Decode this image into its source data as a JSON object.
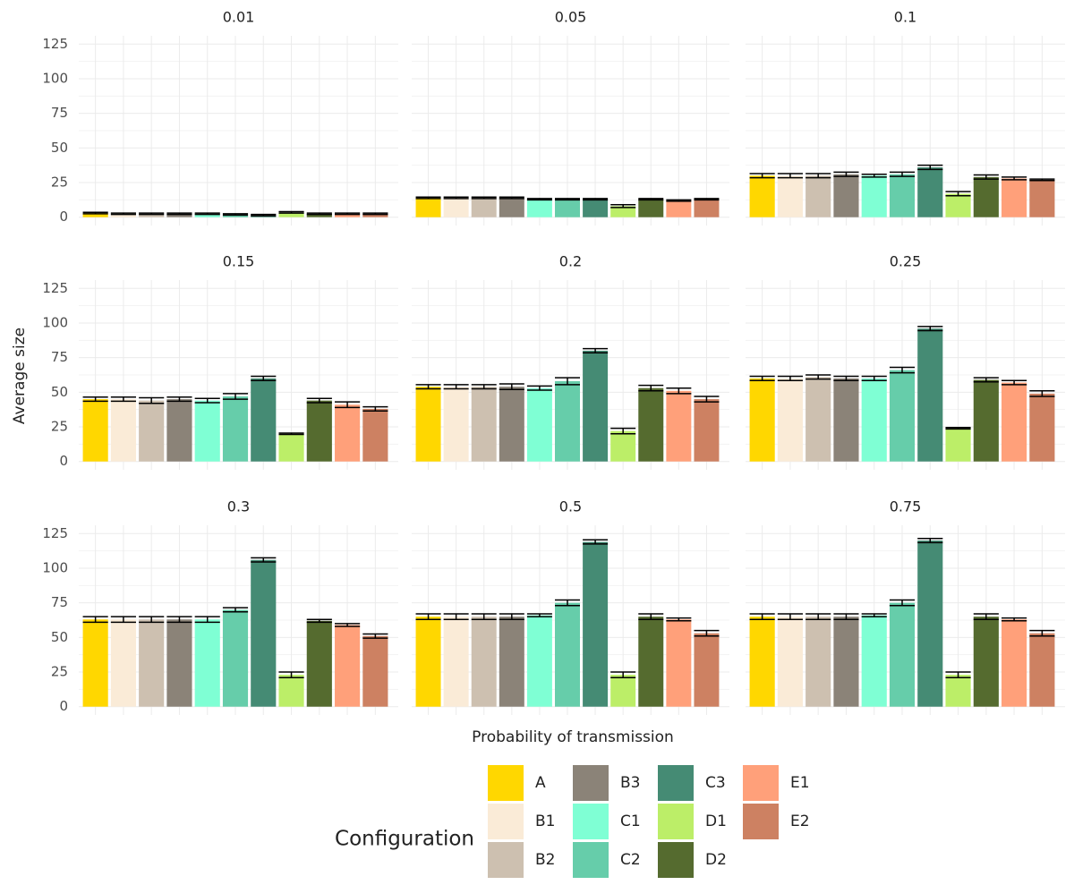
{
  "chart_data": {
    "type": "bar",
    "xlabel": "Probability of transmission",
    "ylabel": "Average size",
    "legend_title": "Configuration",
    "facets": [
      "0.01",
      "0.05",
      "0.1",
      "0.15",
      "0.2",
      "0.25",
      "0.3",
      "0.5",
      "0.75"
    ],
    "ylim": [
      -6,
      131
    ],
    "yticks": [
      0,
      25,
      50,
      75,
      100,
      125
    ],
    "grid": true,
    "series": [
      {
        "name": "A",
        "color": "#FFD700",
        "values": [
          3,
          14,
          30,
          45,
          54,
          60,
          63,
          65,
          65
        ],
        "errors": [
          0.5,
          0.5,
          1.5,
          1.5,
          1.5,
          1.5,
          2,
          2,
          2
        ]
      },
      {
        "name": "B1",
        "color": "#FAEBD7",
        "values": [
          2.5,
          14,
          30,
          45,
          54,
          60,
          63,
          65,
          65
        ],
        "errors": [
          0.5,
          0.5,
          1.5,
          1.5,
          1.5,
          1.5,
          2,
          2,
          2
        ]
      },
      {
        "name": "B2",
        "color": "#CDC0B0",
        "values": [
          2.5,
          14,
          30,
          44,
          54,
          61,
          63,
          65,
          65
        ],
        "errors": [
          0.5,
          0.5,
          1.5,
          2,
          1.5,
          1.5,
          2,
          2,
          2
        ]
      },
      {
        "name": "B3",
        "color": "#8B8378",
        "values": [
          2.5,
          14,
          31,
          45,
          54,
          60,
          63,
          65,
          65
        ],
        "errors": [
          0.5,
          0.5,
          1.5,
          1.5,
          2,
          1.5,
          2,
          2,
          2
        ]
      },
      {
        "name": "C1",
        "color": "#7FFFD4",
        "values": [
          2.5,
          13,
          30,
          44,
          53,
          60,
          63,
          66,
          66
        ],
        "errors": [
          0.5,
          0.5,
          1,
          1.5,
          1.5,
          1.5,
          2,
          1,
          1
        ]
      },
      {
        "name": "C2",
        "color": "#66CDAA",
        "values": [
          2,
          13,
          31,
          47,
          58,
          66,
          70,
          75,
          75
        ],
        "errors": [
          0.5,
          0.5,
          1.5,
          2,
          2.5,
          2,
          1.5,
          2,
          2
        ]
      },
      {
        "name": "C3",
        "color": "#458B74",
        "values": [
          1.5,
          13,
          36,
          60,
          80,
          96,
          106,
          119,
          120
        ],
        "errors": [
          0.5,
          0.5,
          1.5,
          1.5,
          1.5,
          1.5,
          1.5,
          1.5,
          1.5
        ]
      },
      {
        "name": "D1",
        "color": "#BCEE68",
        "values": [
          3.5,
          8,
          17,
          20,
          22,
          24,
          23,
          23,
          23
        ],
        "errors": [
          0.5,
          1,
          1.5,
          0.5,
          2,
          0.5,
          2,
          2,
          2
        ]
      },
      {
        "name": "D2",
        "color": "#556B2F",
        "values": [
          2.5,
          13,
          29,
          44,
          53,
          59,
          62,
          65,
          65
        ],
        "errors": [
          0.5,
          0.5,
          1.5,
          1.5,
          2,
          1.5,
          1,
          2,
          2
        ]
      },
      {
        "name": "E1",
        "color": "#FFA07A",
        "values": [
          2.5,
          12,
          28,
          41,
          51,
          57,
          59,
          63,
          63
        ],
        "errors": [
          0.5,
          0.5,
          1,
          2,
          2,
          1.5,
          1,
          1,
          1
        ]
      },
      {
        "name": "E2",
        "color": "#CD8162",
        "values": [
          2.5,
          13,
          27,
          38,
          45,
          49,
          51,
          53,
          53
        ],
        "errors": [
          0.5,
          0.5,
          0.5,
          1.5,
          2,
          2,
          1.5,
          2,
          2
        ]
      }
    ]
  }
}
